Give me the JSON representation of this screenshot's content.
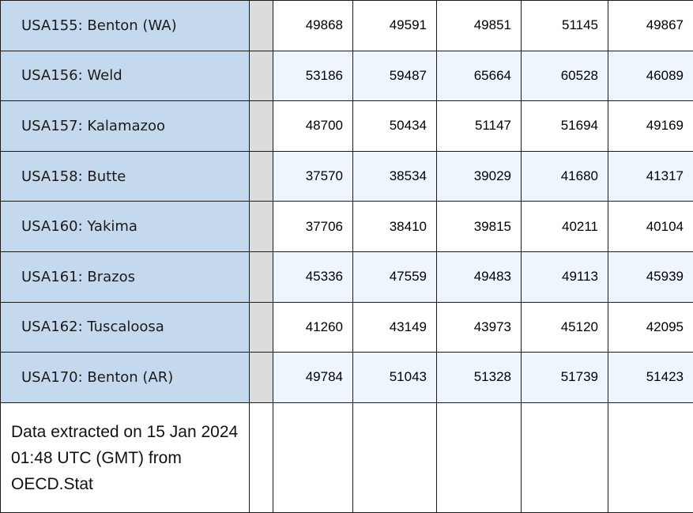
{
  "rows": [
    {
      "region": "USA155: Benton (WA)",
      "values": [
        "49868",
        "49591",
        "49851",
        "51145",
        "49867"
      ]
    },
    {
      "region": "USA156: Weld",
      "values": [
        "53186",
        "59487",
        "65664",
        "60528",
        "46089"
      ]
    },
    {
      "region": "USA157: Kalamazoo",
      "values": [
        "48700",
        "50434",
        "51147",
        "51694",
        "49169"
      ]
    },
    {
      "region": "USA158: Butte",
      "values": [
        "37570",
        "38534",
        "39029",
        "41680",
        "41317"
      ]
    },
    {
      "region": "USA160: Yakima",
      "values": [
        "37706",
        "38410",
        "39815",
        "40211",
        "40104"
      ]
    },
    {
      "region": "USA161: Brazos",
      "values": [
        "45336",
        "47559",
        "49483",
        "49113",
        "45939"
      ]
    },
    {
      "region": "USA162: Tuscaloosa",
      "values": [
        "41260",
        "43149",
        "43973",
        "45120",
        "42095"
      ]
    },
    {
      "region": "USA170: Benton (AR)",
      "values": [
        "49784",
        "51043",
        "51328",
        "51739",
        "51423"
      ]
    }
  ],
  "footnote": "Data extracted on 15 Jan 2024 01:48 UTC (GMT) from OECD.Stat",
  "colors": {
    "region_bg": "#c5d9ee",
    "separator_bg": "#dcdcdc",
    "alt_row_bg": "#eef5fd"
  }
}
